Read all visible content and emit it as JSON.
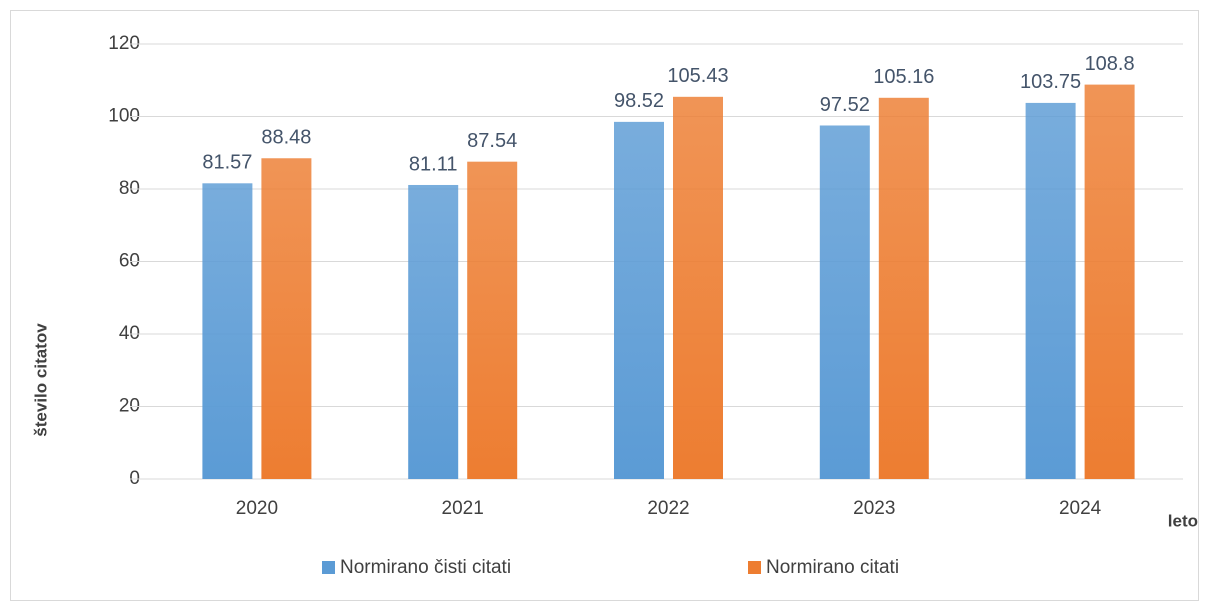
{
  "chart_data": {
    "type": "bar",
    "categories": [
      "2020",
      "2021",
      "2022",
      "2023",
      "2024"
    ],
    "series": [
      {
        "name": "Normirano čisti citati",
        "color": "#5b9bd5",
        "values": [
          81.57,
          81.11,
          98.52,
          97.52,
          103.75
        ]
      },
      {
        "name": "Normirano citati",
        "color": "#ed7d31",
        "values": [
          88.48,
          87.54,
          105.43,
          105.16,
          108.8
        ]
      }
    ],
    "ylabel": "število citatov",
    "xlabel": "leto",
    "ylim": [
      0,
      120
    ],
    "yticks": [
      0,
      20,
      40,
      60,
      80,
      100,
      120
    ],
    "grid": true,
    "legend": "bottom"
  }
}
